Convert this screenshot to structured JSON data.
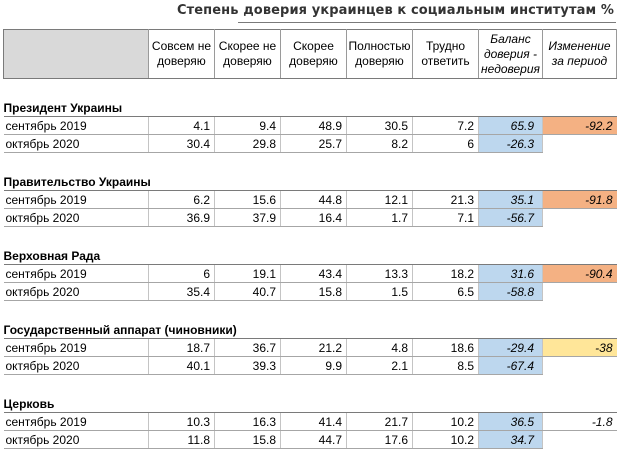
{
  "title": "Степень доверия украинцев к социальным институтам %",
  "chart_data": {
    "type": "table",
    "title": "Степень доверия украинцев к социальным институтам %",
    "columns": [
      "Совсем не доверяю",
      "Скорее не доверяю",
      "Скорее доверяю",
      "Полностью доверяю",
      "Трудно ответить",
      "Баланс доверия-недоверия",
      "Изменение за период"
    ],
    "column_lines": [
      [
        "Совсем не",
        "доверяю"
      ],
      [
        "Скорее не",
        "доверяю"
      ],
      [
        "Скорее",
        "доверяю"
      ],
      [
        "Полностью",
        "доверяю"
      ],
      [
        "Трудно",
        "ответить"
      ],
      [
        "Баланс",
        "доверия -",
        "недоверия"
      ],
      [
        "Изменение",
        "за период"
      ]
    ],
    "sections": [
      {
        "name": "Президент Украины",
        "change": "-92.2",
        "change_color": "#f4b183",
        "rows": [
          {
            "period": "сентябрь 2019",
            "values": [
              "4.1",
              "9.4",
              "48.9",
              "30.5",
              "7.2"
            ],
            "balance": "65.9"
          },
          {
            "period": "октябрь 2020",
            "values": [
              "30.4",
              "29.8",
              "25.7",
              "8.2",
              "6"
            ],
            "balance": "-26.3"
          }
        ]
      },
      {
        "name": "Правительство Украины",
        "change": "-91.8",
        "change_color": "#f4b183",
        "rows": [
          {
            "period": "сентябрь 2019",
            "values": [
              "6.2",
              "15.6",
              "44.8",
              "12.1",
              "21.3"
            ],
            "balance": "35.1"
          },
          {
            "period": "октябрь 2020",
            "values": [
              "36.9",
              "37.9",
              "16.4",
              "1.7",
              "7.1"
            ],
            "balance": "-56.7"
          }
        ]
      },
      {
        "name": "Верховная Рада",
        "change": "-90.4",
        "change_color": "#f4b183",
        "rows": [
          {
            "period": "сентябрь 2019",
            "values": [
              "6",
              "19.1",
              "43.4",
              "13.3",
              "18.2"
            ],
            "balance": "31.6"
          },
          {
            "period": "октябрь 2020",
            "values": [
              "35.4",
              "40.7",
              "15.8",
              "1.5",
              "6.5"
            ],
            "balance": "-58.8"
          }
        ]
      },
      {
        "name": "Государственный аппарат (чиновники)",
        "change": "-38",
        "change_color": "#ffe699",
        "rows": [
          {
            "period": "сентябрь 2019",
            "values": [
              "18.7",
              "36.7",
              "21.2",
              "4.8",
              "18.6"
            ],
            "balance": "-29.4"
          },
          {
            "period": "октябрь 2020",
            "values": [
              "40.1",
              "39.3",
              "9.9",
              "2.1",
              "8.5"
            ],
            "balance": "-67.4"
          }
        ]
      },
      {
        "name": "Церковь",
        "change": "-1.8",
        "change_color": "#ffffff",
        "rows": [
          {
            "period": "сентябрь 2019",
            "values": [
              "10.3",
              "16.3",
              "41.4",
              "21.7",
              "10.2"
            ],
            "balance": "36.5"
          },
          {
            "period": "октябрь 2020",
            "values": [
              "11.8",
              "15.8",
              "44.7",
              "17.6",
              "10.2"
            ],
            "balance": "34.7"
          }
        ]
      }
    ]
  }
}
